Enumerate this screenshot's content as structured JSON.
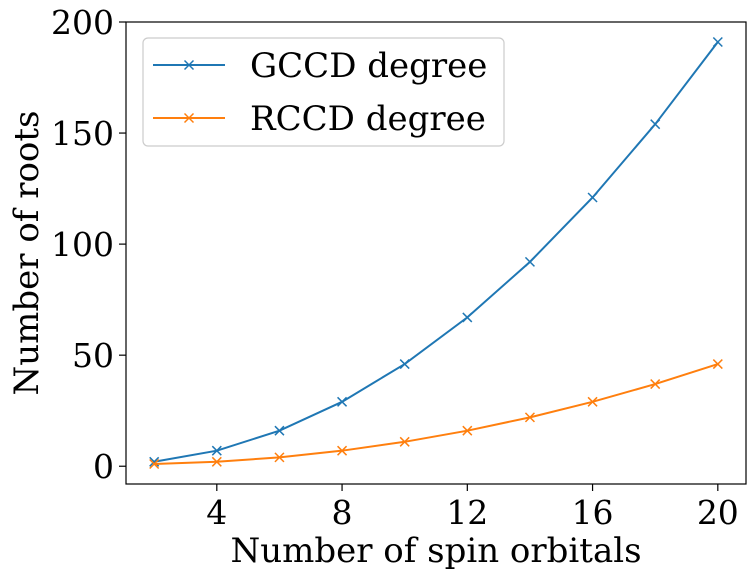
{
  "chart_data": {
    "type": "line",
    "title": "",
    "xlabel": "Number of spin orbitals",
    "ylabel": "Number of roots",
    "xlim": [
      1.1,
      20.9
    ],
    "ylim": [
      -8,
      200
    ],
    "xticks": [
      4,
      8,
      12,
      16,
      20
    ],
    "xtick_labels": [
      "4",
      "8",
      "12",
      "16",
      "20"
    ],
    "yticks": [
      0,
      50,
      100,
      150,
      200
    ],
    "ytick_labels": [
      "0",
      "50",
      "100",
      "150",
      "200"
    ],
    "grid": false,
    "legend_position": "top-left",
    "x": [
      2,
      4,
      6,
      8,
      10,
      12,
      14,
      16,
      18,
      20
    ],
    "series": [
      {
        "name": "GCCD degree",
        "color": "#1f77b4",
        "marker": "x",
        "values": [
          2,
          7,
          16,
          29,
          46,
          67,
          92,
          121,
          154,
          191
        ]
      },
      {
        "name": "RCCD degree",
        "color": "#ff7f0e",
        "marker": "x",
        "values": [
          1,
          2,
          4,
          7,
          11,
          16,
          22,
          29,
          37,
          46
        ]
      }
    ]
  }
}
